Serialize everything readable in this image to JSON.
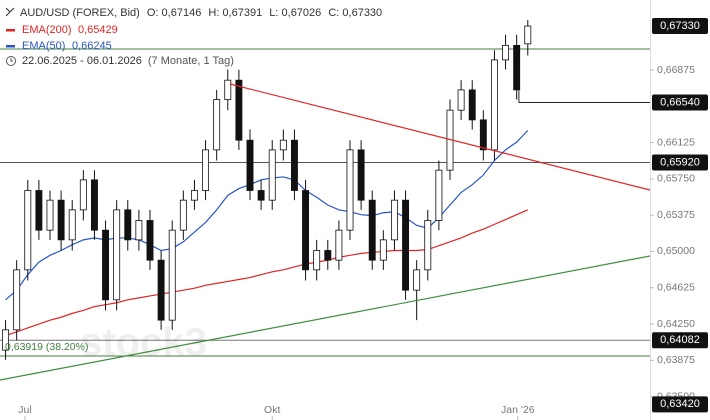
{
  "chart_data": {
    "type": "candlestick",
    "header": {
      "symbol": "AUD/USD (FOREX, Bid)",
      "o_label": "O:",
      "o": "0,67146",
      "h_label": "H:",
      "h": "0,67391",
      "l_label": "L:",
      "l": "0,67026",
      "c_label": "C:",
      "c": "0,67330"
    },
    "period": "22.06.2025 - 06.01.2026",
    "period_note": "(7 Monate, 1 Tag)",
    "watermark": "stock3",
    "candles": {
      "up_color": "#ffffff",
      "down_color": "#111111",
      "edge_color": "#111111",
      "open": [
        0.6398,
        0.6419,
        0.6481,
        0.6563,
        0.6522,
        0.6553,
        0.6512,
        0.6543,
        0.6574,
        0.6522,
        0.645,
        0.6543,
        0.6512,
        0.6532,
        0.6491,
        0.6429,
        0.6522,
        0.6553,
        0.6563,
        0.6605,
        0.6657,
        0.6677,
        0.6615,
        0.6563,
        0.6553,
        0.6605,
        0.6615,
        0.6563,
        0.6481,
        0.6501,
        0.6491,
        0.6522,
        0.6605,
        0.6553,
        0.6491,
        0.6512,
        0.6553,
        0.646,
        0.6481,
        0.6532,
        0.6584,
        0.6646,
        0.6667,
        0.6636,
        0.6605,
        0.6698,
        0.6713,
        0.67146
      ],
      "high": [
        0.6429,
        0.6491,
        0.6574,
        0.6574,
        0.6563,
        0.6563,
        0.6553,
        0.6584,
        0.6584,
        0.6532,
        0.6553,
        0.6553,
        0.6543,
        0.6543,
        0.6501,
        0.6532,
        0.6563,
        0.6574,
        0.6615,
        0.6667,
        0.6688,
        0.6688,
        0.6626,
        0.6574,
        0.6615,
        0.6626,
        0.6626,
        0.6574,
        0.6512,
        0.6512,
        0.6532,
        0.6615,
        0.6615,
        0.6563,
        0.6522,
        0.6563,
        0.6563,
        0.6491,
        0.6543,
        0.6594,
        0.6657,
        0.6677,
        0.6677,
        0.6646,
        0.6708,
        0.6724,
        0.6724,
        0.67391
      ],
      "low": [
        0.6388,
        0.6408,
        0.647,
        0.6512,
        0.6512,
        0.6501,
        0.6501,
        0.6532,
        0.6512,
        0.6439,
        0.6439,
        0.6501,
        0.6501,
        0.6481,
        0.6419,
        0.6419,
        0.6512,
        0.6543,
        0.6553,
        0.6594,
        0.6646,
        0.6605,
        0.6553,
        0.6543,
        0.6543,
        0.6594,
        0.6553,
        0.647,
        0.647,
        0.6481,
        0.6481,
        0.6512,
        0.6543,
        0.6481,
        0.6481,
        0.6501,
        0.645,
        0.6429,
        0.647,
        0.6522,
        0.6574,
        0.6636,
        0.6626,
        0.6594,
        0.6594,
        0.6688,
        0.6657,
        0.67026
      ],
      "close": [
        0.6419,
        0.6481,
        0.6563,
        0.6522,
        0.6553,
        0.6512,
        0.6543,
        0.6574,
        0.6522,
        0.645,
        0.6543,
        0.6512,
        0.6532,
        0.6491,
        0.6429,
        0.6522,
        0.6553,
        0.6563,
        0.6605,
        0.6657,
        0.6677,
        0.6615,
        0.6563,
        0.6553,
        0.6605,
        0.6615,
        0.6563,
        0.6481,
        0.6501,
        0.6491,
        0.6522,
        0.6605,
        0.6553,
        0.6491,
        0.6512,
        0.6553,
        0.646,
        0.6481,
        0.6532,
        0.6584,
        0.6646,
        0.6667,
        0.6636,
        0.6605,
        0.6698,
        0.6713,
        0.6667,
        0.6733
      ]
    },
    "series": [
      {
        "name": "EMA(200)",
        "legend_value": "0,65429",
        "color": "#e02424",
        "values": [
          0.6413,
          0.6417,
          0.6421,
          0.6425,
          0.6429,
          0.6432,
          0.6436,
          0.6439,
          0.6443,
          0.6445,
          0.6447,
          0.645,
          0.6452,
          0.6454,
          0.6456,
          0.6458,
          0.646,
          0.6462,
          0.6465,
          0.6467,
          0.6469,
          0.6471,
          0.6473,
          0.6476,
          0.6479,
          0.6481,
          0.6484,
          0.6487,
          0.6489,
          0.6491,
          0.6494,
          0.6496,
          0.6498,
          0.6499,
          0.65,
          0.6501,
          0.6501,
          0.6501,
          0.6502,
          0.6506,
          0.651,
          0.6514,
          0.6519,
          0.6523,
          0.6528,
          0.6533,
          0.6538,
          0.6543
        ]
      },
      {
        "name": "EMA(50)",
        "legend_value": "0,66245",
        "color": "#2a55c8",
        "values": [
          0.645,
          0.646,
          0.6476,
          0.6489,
          0.6496,
          0.6501,
          0.6507,
          0.6512,
          0.6514,
          0.6512,
          0.6514,
          0.6514,
          0.6512,
          0.6507,
          0.6501,
          0.6503,
          0.651,
          0.652,
          0.653,
          0.6543,
          0.6558,
          0.6565,
          0.6569,
          0.6574,
          0.6576,
          0.6577,
          0.6574,
          0.6563,
          0.6556,
          0.6548,
          0.6543,
          0.6541,
          0.6538,
          0.6537,
          0.654,
          0.6541,
          0.6535,
          0.6527,
          0.6524,
          0.6535,
          0.6548,
          0.6561,
          0.6569,
          0.6579,
          0.6594,
          0.6605,
          0.6613,
          0.6625
        ]
      }
    ],
    "levels": [
      {
        "value": 0.6733,
        "label": "0,67330",
        "color": null
      },
      {
        "value": 0.67092,
        "color": "#3f7f3f"
      },
      {
        "value": 0.6654,
        "label": "0,66540",
        "color": "#222222",
        "from": 46.2
      },
      {
        "value": 0.6592,
        "label": "0,65920",
        "color": "#555555"
      },
      {
        "value": 0.64082,
        "label": "0,64082",
        "color": "#777777"
      },
      {
        "value": 0.63919,
        "label": "0,63919 (38.20%)",
        "color": "#3f7f3f",
        "label_side": "left"
      },
      {
        "value": 0.6342,
        "label": "0,63420",
        "color": null
      }
    ],
    "xlim": [
      -0.5,
      58
    ],
    "xticks": [
      {
        "value": 1.75,
        "label": "Jul"
      },
      {
        "value": 24,
        "label": "Okt"
      },
      {
        "value": 46.1,
        "label": "Jan '26"
      }
    ],
    "ylim": [
      0.63258,
      0.67599
    ],
    "yticks": [
      {
        "value": 0.66875,
        "label": "0,66875"
      },
      {
        "value": 0.66125,
        "label": "0,66125"
      },
      {
        "value": 0.6575,
        "label": "0,65750"
      },
      {
        "value": 0.65375,
        "label": "0,65375"
      },
      {
        "value": 0.65,
        "label": "0,65000"
      },
      {
        "value": 0.64625,
        "label": "0,64625"
      },
      {
        "value": 0.6425,
        "label": "0,64250"
      },
      {
        "value": 0.63875,
        "label": "0,63875"
      },
      {
        "value": 0.635,
        "label": "0,63500"
      }
    ]
  }
}
